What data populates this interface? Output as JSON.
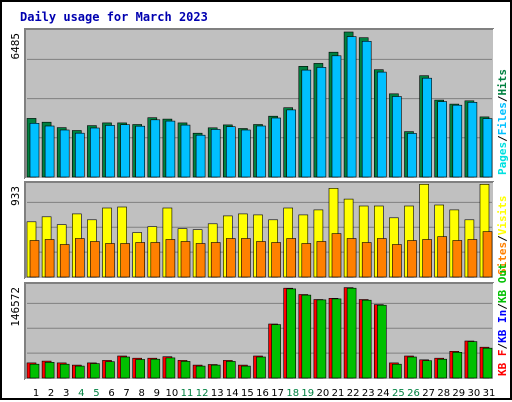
{
  "chart_data": {
    "type": "bar",
    "title": "Daily usage for March 2023",
    "categories": [
      "1",
      "2",
      "3",
      "4",
      "5",
      "6",
      "7",
      "8",
      "9",
      "10",
      "11",
      "12",
      "13",
      "14",
      "15",
      "16",
      "17",
      "18",
      "19",
      "20",
      "21",
      "22",
      "23",
      "24",
      "25",
      "26",
      "27",
      "28",
      "29",
      "30",
      "31"
    ],
    "weekend_days": [
      "4",
      "5",
      "11",
      "12",
      "18",
      "19",
      "25",
      "26"
    ],
    "panels": [
      {
        "name": "hits-files-pages",
        "ymax": 6485,
        "ymax_label": "6485",
        "legend": [
          "Pages",
          "Files",
          "Hits"
        ],
        "series": [
          {
            "name": "Hits",
            "color": "#008040",
            "values": [
              2620,
              2450,
              2210,
              2080,
              2300,
              2420,
              2420,
              2350,
              2650,
              2590,
              2420,
              1960,
              2200,
              2330,
              2170,
              2350,
              2720,
              3100,
              4950,
              5080,
              5580,
              6485,
              6230,
              4800,
              3720,
              2030,
              4530,
              3440,
              3260,
              3410,
              2690
            ]
          },
          {
            "name": "Files",
            "color": "#00c0ff",
            "values": [
              2400,
              2280,
              2100,
              1960,
              2190,
              2310,
              2340,
              2270,
              2560,
              2500,
              2320,
              1870,
              2130,
              2250,
              2100,
              2280,
              2640,
              3000,
              4780,
              4900,
              5420,
              6280,
              6070,
              4690,
              3600,
              1950,
              4420,
              3370,
              3210,
              3340,
              2610
            ]
          },
          {
            "name": "Pages",
            "color": "#00e0e0",
            "values": []
          }
        ]
      },
      {
        "name": "visits-sites",
        "ymax": 933,
        "ymax_label": "933",
        "legend": [
          "Sites",
          "Visits"
        ],
        "series": [
          {
            "name": "Visits",
            "color": "#ffff00",
            "values": [
              560,
              610,
              530,
              640,
              580,
              700,
              710,
              450,
              510,
              700,
              490,
              480,
              540,
              620,
              640,
              630,
              580,
              700,
              630,
              680,
              900,
              790,
              720,
              720,
              600,
              720,
              940,
              730,
              680,
              580,
              940
            ]
          },
          {
            "name": "Sites",
            "color": "#ff8000",
            "values": [
              370,
              380,
              330,
              390,
              360,
              340,
              340,
              350,
              350,
              380,
              360,
              340,
              350,
              390,
              390,
              360,
              350,
              390,
              340,
              360,
              440,
              390,
              350,
              390,
              330,
              370,
              380,
              410,
              370,
              380,
              460
            ]
          }
        ]
      },
      {
        "name": "kbf-kbin-kbout",
        "ymax": 146572,
        "ymax_label": "146572",
        "legend": [
          "KB F",
          "KB In",
          "KB Out"
        ],
        "series": [
          {
            "name": "KB F",
            "color": "#ff0000",
            "values": [
              24000,
              27000,
              24000,
              20500,
              24000,
              28000,
              35000,
              31500,
              31500,
              34000,
              28000,
              20500,
              21500,
              28000,
              20500,
              35000,
              86000,
              143000,
              133000,
              125000,
              127000,
              144000,
              125000,
              117000,
              24000,
              35000,
              29000,
              31500,
              42500,
              59000,
              49000
            ]
          },
          {
            "name": "KB Out",
            "color": "#00c000",
            "values": [
              22000,
              25000,
              22000,
              19000,
              23000,
              26000,
              33500,
              29500,
              30000,
              32000,
              26500,
              19000,
              20500,
              26500,
              19000,
              33500,
              85000,
              142000,
              132000,
              124500,
              126000,
              143000,
              124000,
              116000,
              22000,
              33500,
              27500,
              30000,
              41000,
              58000,
              47500
            ]
          },
          {
            "name": "KB In",
            "color": "#0000ff",
            "values": []
          }
        ]
      }
    ]
  }
}
